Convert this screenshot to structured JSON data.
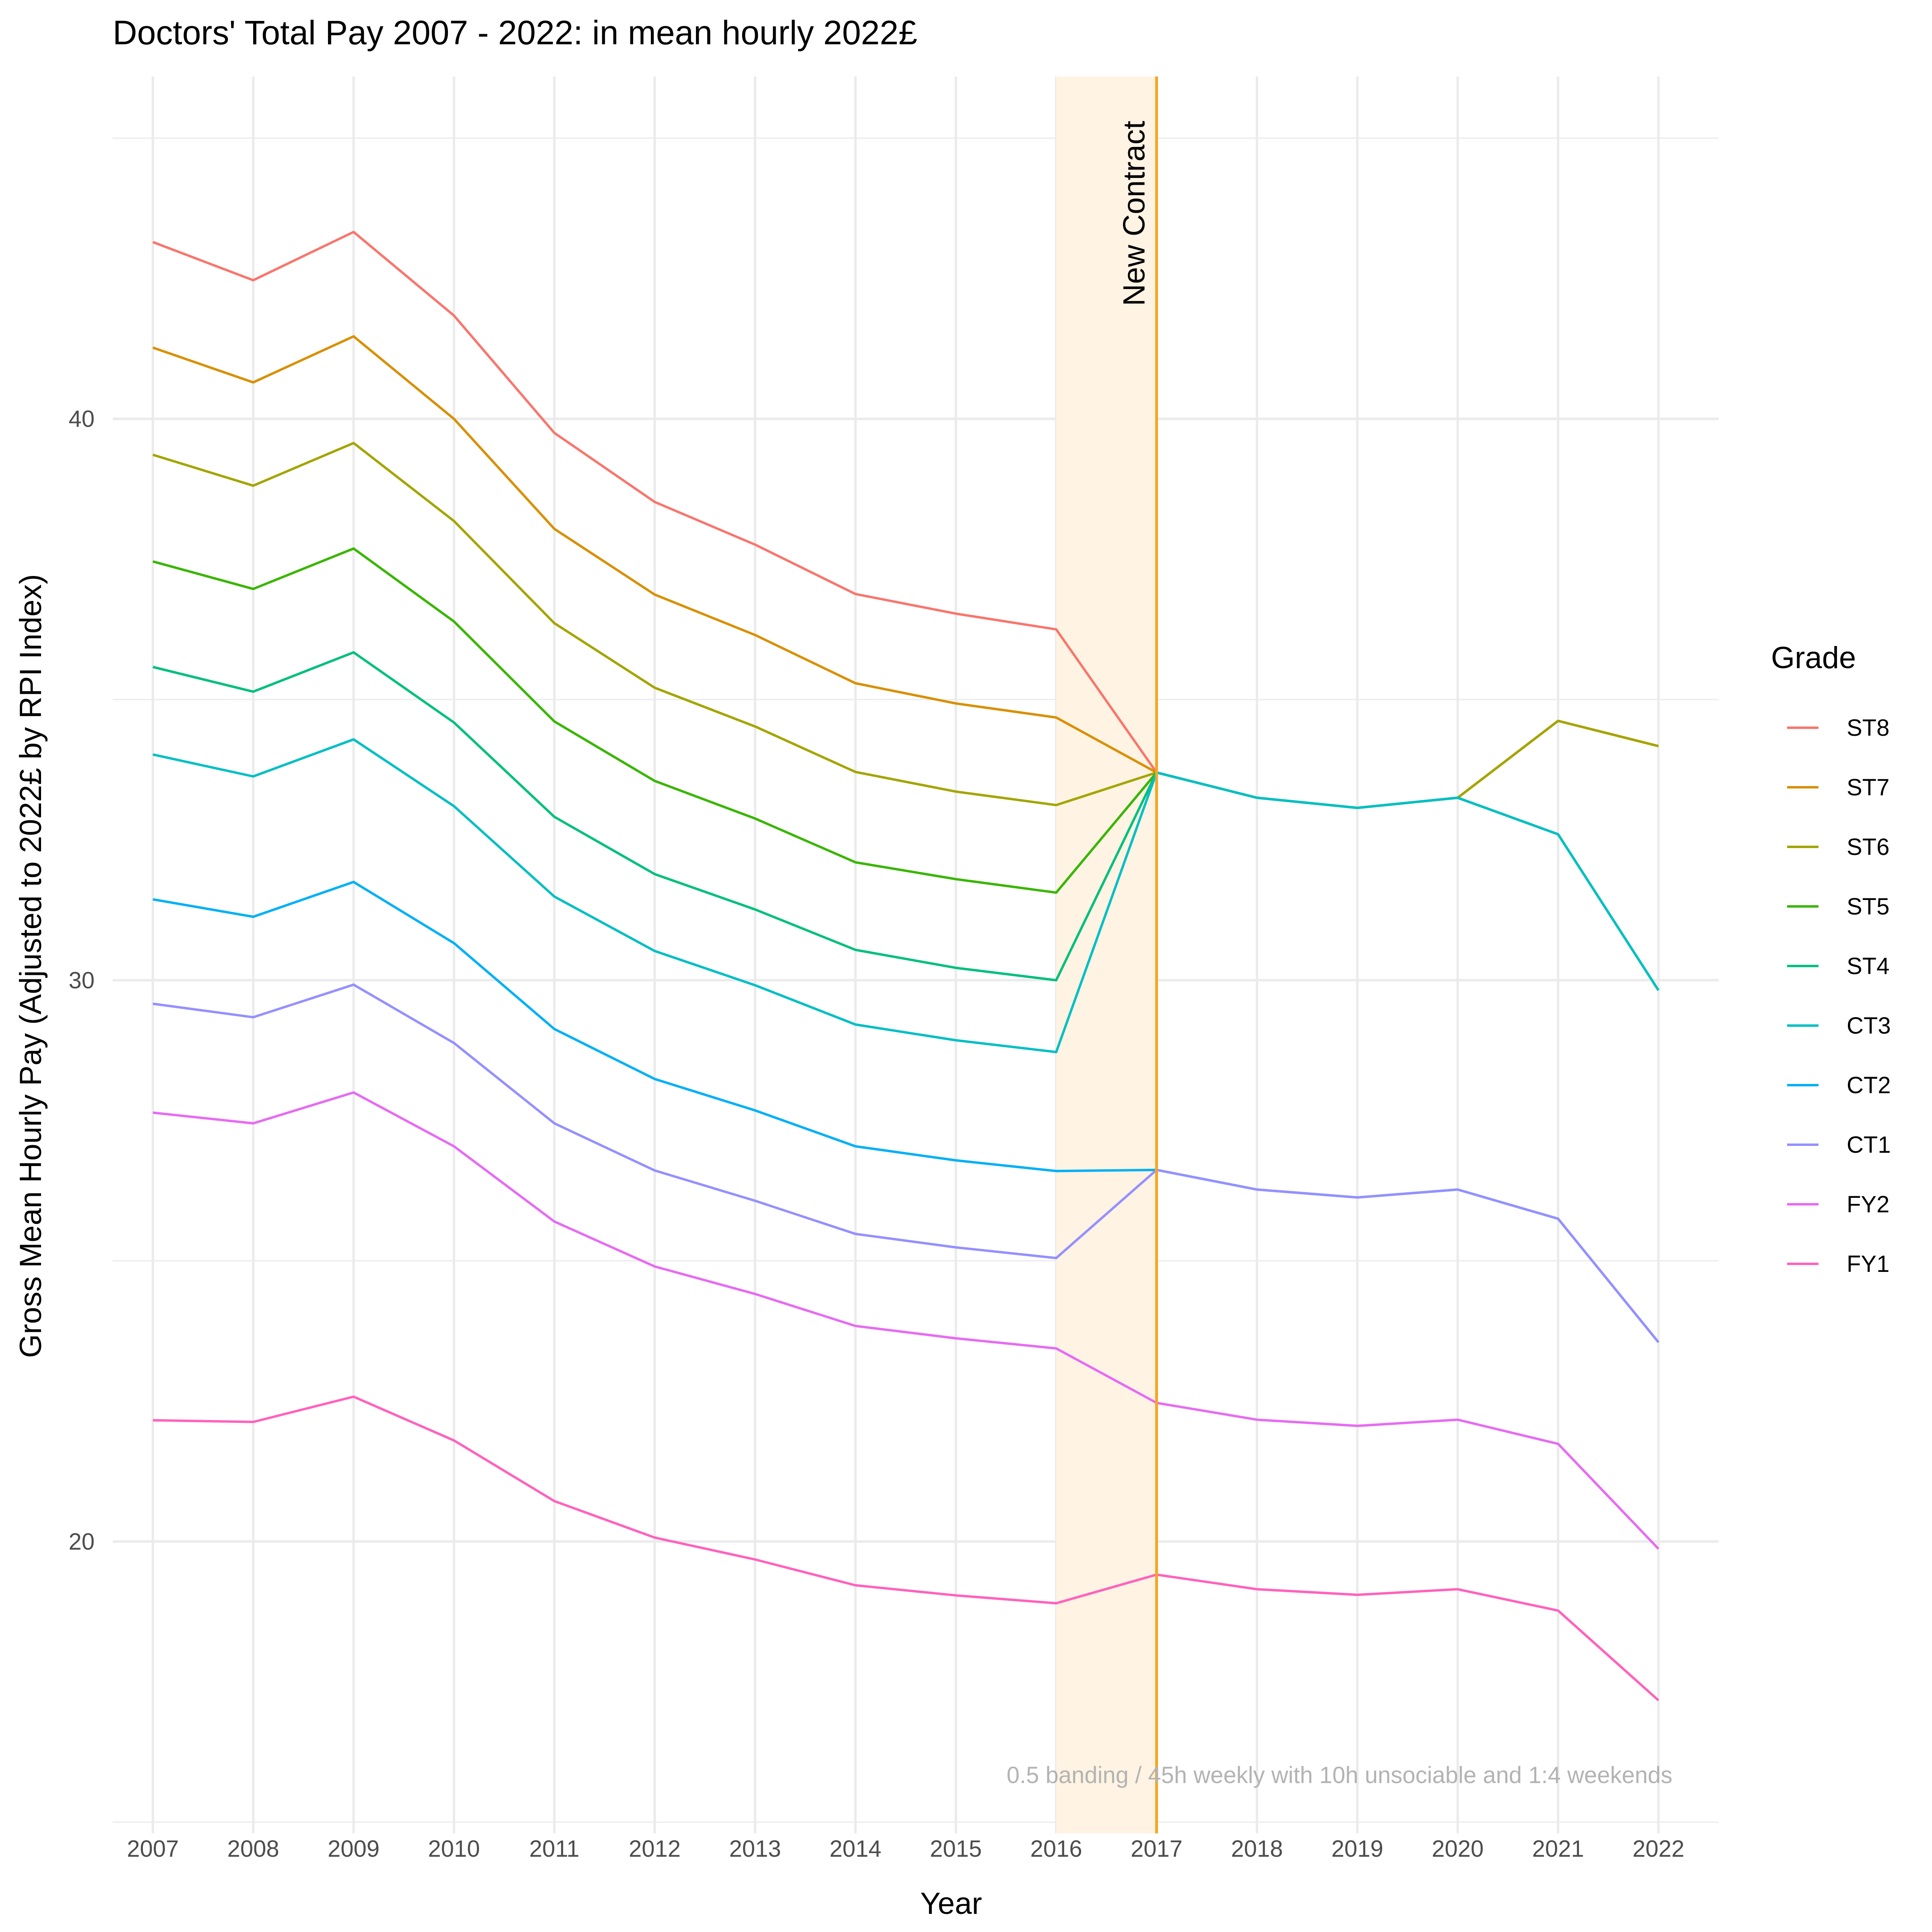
{
  "chart_data": {
    "type": "line",
    "title": "Doctors' Total Pay 2007 - 2022: in mean hourly 2022£",
    "xlabel": "Year",
    "ylabel": "Gross Mean Hourly Pay (Adjusted to 2022£ by RPI Index)",
    "x": [
      2007,
      2008,
      2009,
      2010,
      2011,
      2012,
      2013,
      2014,
      2015,
      2016,
      2017,
      2018,
      2019,
      2020,
      2021,
      2022
    ],
    "xlim": [
      2006.6,
      2022.6
    ],
    "ylim": [
      14.8,
      46.1
    ],
    "y_ticks_labeled": [
      20,
      30,
      40
    ],
    "y_ticks_minor": [
      15,
      25,
      35,
      45
    ],
    "grid": true,
    "legend": {
      "title": "Grade",
      "position": "right"
    },
    "series": [
      {
        "name": "ST8",
        "color": "#F8766D",
        "values": [
          43.15,
          42.47,
          43.33,
          41.84,
          39.75,
          38.52,
          37.76,
          36.88,
          36.53,
          36.25,
          33.7,
          33.25,
          33.07,
          33.25,
          34.62,
          34.17
        ]
      },
      {
        "name": "ST7",
        "color": "#D89000",
        "values": [
          41.27,
          40.65,
          41.47,
          40.0,
          38.04,
          36.87,
          36.15,
          35.29,
          34.93,
          34.68,
          33.7,
          33.25,
          33.07,
          33.25,
          34.62,
          34.17
        ]
      },
      {
        "name": "ST6",
        "color": "#A3A500",
        "values": [
          39.36,
          38.81,
          39.57,
          38.18,
          36.36,
          35.21,
          34.52,
          33.71,
          33.36,
          33.12,
          33.7,
          33.25,
          33.07,
          33.25,
          34.62,
          34.17
        ]
      },
      {
        "name": "ST5",
        "color": "#39B600",
        "values": [
          37.46,
          36.97,
          37.69,
          36.39,
          34.61,
          33.55,
          32.88,
          32.1,
          31.8,
          31.56,
          33.7,
          33.25,
          33.07,
          33.25,
          32.6,
          29.82
        ]
      },
      {
        "name": "ST4",
        "color": "#00BF7D",
        "values": [
          35.58,
          35.14,
          35.84,
          34.59,
          32.91,
          31.89,
          31.26,
          30.54,
          30.22,
          30.0,
          33.7,
          33.25,
          33.07,
          33.25,
          32.6,
          29.82
        ]
      },
      {
        "name": "CT3",
        "color": "#00BFC4",
        "values": [
          34.02,
          33.63,
          34.29,
          33.1,
          31.49,
          30.52,
          29.91,
          29.21,
          28.93,
          28.72,
          33.7,
          33.25,
          33.07,
          33.25,
          32.6,
          29.82
        ]
      },
      {
        "name": "CT2",
        "color": "#00B0F6",
        "values": [
          31.44,
          31.13,
          31.75,
          30.66,
          29.13,
          28.24,
          27.68,
          27.04,
          26.79,
          26.6,
          26.62,
          26.27,
          26.13,
          26.27,
          25.75,
          23.55
        ]
      },
      {
        "name": "CT1",
        "color": "#9590FF",
        "values": [
          29.58,
          29.34,
          29.92,
          28.88,
          27.45,
          26.61,
          26.07,
          25.48,
          25.24,
          25.05,
          26.62,
          26.27,
          26.13,
          26.27,
          25.75,
          23.55
        ]
      },
      {
        "name": "FY2",
        "color": "#E76BF3",
        "values": [
          27.64,
          27.45,
          28.0,
          27.04,
          25.7,
          24.9,
          24.41,
          23.84,
          23.62,
          23.44,
          22.47,
          22.17,
          22.06,
          22.17,
          21.74,
          19.87
        ]
      },
      {
        "name": "FY1",
        "color": "#FF62BC",
        "values": [
          22.16,
          22.13,
          22.58,
          21.8,
          20.72,
          20.07,
          19.68,
          19.22,
          19.04,
          18.9,
          19.41,
          19.15,
          19.05,
          19.15,
          18.77,
          17.17
        ]
      }
    ],
    "annotations": {
      "band": {
        "x_start": 2016,
        "x_end": 2017,
        "fill": "#FFF3E3"
      },
      "vline": {
        "x": 2017,
        "color": "#F5A623"
      },
      "vline_label": "New Contract",
      "caption": "0.5 banding / 45h weekly with 10h unsociable and 1:4 weekends"
    }
  }
}
